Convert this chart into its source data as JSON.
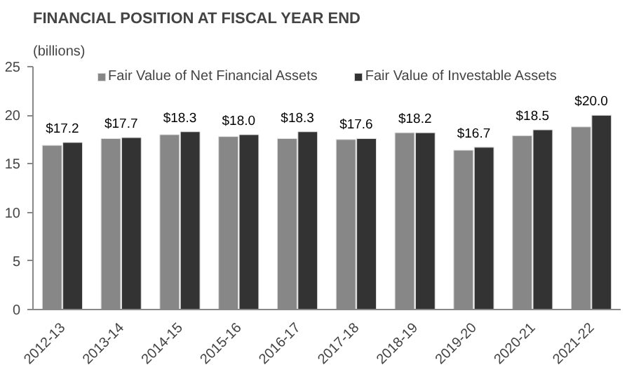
{
  "chart_data": {
    "type": "bar",
    "title": "FINANCIAL POSITION AT FISCAL YEAR END",
    "ylabel": "(billions)",
    "categories": [
      "2012-13",
      "2013-14",
      "2014-15",
      "2015-16",
      "2016-17",
      "2017-18",
      "2018-19",
      "2019-20",
      "2020-21",
      "2021-22"
    ],
    "series": [
      {
        "name": "Fair Value of Net Financial Assets",
        "color": "#878787",
        "values": [
          16.9,
          17.6,
          18.0,
          17.8,
          17.6,
          17.5,
          18.2,
          16.4,
          17.9,
          18.8
        ]
      },
      {
        "name": "Fair Value of Investable Assets",
        "color": "#333333",
        "values": [
          17.2,
          17.7,
          18.3,
          18.0,
          18.3,
          17.6,
          18.2,
          16.7,
          18.5,
          20.0
        ],
        "value_labels": [
          "$17.2",
          "$17.7",
          "$18.3",
          "$18.0",
          "$18.3",
          "$17.6",
          "$18.2",
          "$16.7",
          "$18.5",
          "$20.0"
        ]
      }
    ],
    "ylim": [
      0,
      25
    ],
    "yticks": [
      0,
      5,
      10,
      15,
      20,
      25
    ],
    "grid": false,
    "legend": "top"
  }
}
